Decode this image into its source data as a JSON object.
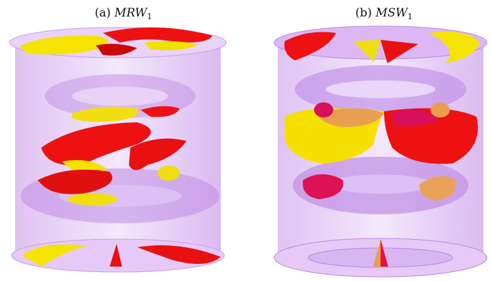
{
  "panels": [
    {
      "label": "(a)",
      "name": "MRW",
      "subscript": "1"
    },
    {
      "label": "(b)",
      "name": "MSW",
      "subscript": "1"
    }
  ]
}
